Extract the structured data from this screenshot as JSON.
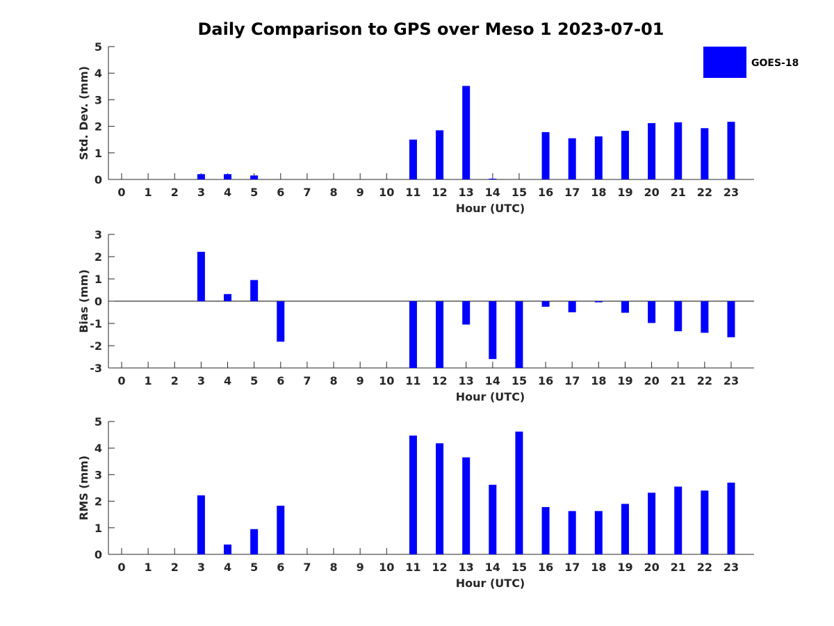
{
  "title": "Daily Comparison to GPS over Meso 1 2023-07-01",
  "colors": {
    "bar": "#0000ff",
    "axis": "#262626"
  },
  "legend": {
    "label": "GOES-18",
    "placement": "top-right"
  },
  "chart_data": [
    {
      "type": "bar",
      "name": "std-dev",
      "xlabel": "Hour (UTC)",
      "ylabel": "Std. Dev. (mm)",
      "ylim": [
        0,
        5
      ],
      "yticks": [
        0,
        1,
        2,
        3,
        4,
        5
      ],
      "categories": [
        "0",
        "1",
        "2",
        "3",
        "4",
        "5",
        "6",
        "7",
        "8",
        "9",
        "10",
        "11",
        "12",
        "13",
        "14",
        "15",
        "16",
        "17",
        "18",
        "19",
        "20",
        "21",
        "22",
        "23"
      ],
      "series": [
        {
          "name": "GOES-18",
          "values": [
            0,
            0,
            0,
            0.2,
            0.2,
            0.15,
            0,
            0,
            0,
            0,
            0,
            1.5,
            1.85,
            3.52,
            0.03,
            0,
            1.78,
            1.55,
            1.62,
            1.83,
            2.12,
            2.15,
            1.93,
            2.17
          ]
        }
      ]
    },
    {
      "type": "bar",
      "name": "bias",
      "xlabel": "Hour (UTC)",
      "ylabel": "Bias (mm)",
      "ylim": [
        -3,
        3
      ],
      "yticks": [
        -3,
        -2,
        -1,
        0,
        1,
        2,
        3
      ],
      "categories": [
        "0",
        "1",
        "2",
        "3",
        "4",
        "5",
        "6",
        "7",
        "8",
        "9",
        "10",
        "11",
        "12",
        "13",
        "14",
        "15",
        "16",
        "17",
        "18",
        "19",
        "20",
        "21",
        "22",
        "23"
      ],
      "series": [
        {
          "name": "GOES-18",
          "values": [
            0,
            0,
            0,
            2.22,
            0.32,
            0.95,
            -1.82,
            0,
            0,
            0,
            0,
            -3,
            -3,
            -1.05,
            -2.6,
            -3,
            -0.25,
            -0.5,
            -0.05,
            -0.52,
            -0.98,
            -1.35,
            -1.42,
            -1.62
          ]
        }
      ]
    },
    {
      "type": "bar",
      "name": "rms",
      "xlabel": "Hour (UTC)",
      "ylabel": "RMS (mm)",
      "ylim": [
        0,
        5
      ],
      "yticks": [
        0,
        1,
        2,
        3,
        4,
        5
      ],
      "categories": [
        "0",
        "1",
        "2",
        "3",
        "4",
        "5",
        "6",
        "7",
        "8",
        "9",
        "10",
        "11",
        "12",
        "13",
        "14",
        "15",
        "16",
        "17",
        "18",
        "19",
        "20",
        "21",
        "22",
        "23"
      ],
      "series": [
        {
          "name": "GOES-18",
          "values": [
            0,
            0,
            0,
            2.22,
            0.37,
            0.95,
            1.83,
            0,
            0,
            0,
            0,
            4.47,
            4.18,
            3.65,
            2.62,
            4.62,
            1.78,
            1.63,
            1.63,
            1.9,
            2.32,
            2.55,
            2.4,
            2.7
          ]
        }
      ]
    }
  ]
}
